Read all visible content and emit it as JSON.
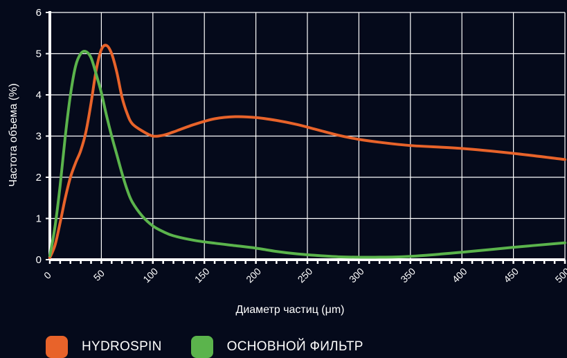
{
  "chart_data": {
    "type": "line",
    "title": "",
    "xlabel": "Диаметр частиц (μm)",
    "ylabel": "Частота объема (%)",
    "xlim": [
      0,
      500
    ],
    "ylim": [
      0,
      6
    ],
    "x_ticks": [
      0,
      50,
      100,
      150,
      200,
      250,
      300,
      350,
      400,
      450,
      500
    ],
    "y_ticks": [
      0,
      1,
      2,
      3,
      4,
      5,
      6
    ],
    "grid": true,
    "legend_position": "bottom",
    "series": [
      {
        "name": "HYDROSPIN",
        "color": "#e8632a",
        "x": [
          0,
          5,
          10,
          15,
          20,
          25,
          30,
          35,
          40,
          45,
          50,
          55,
          60,
          65,
          70,
          75,
          80,
          90,
          100,
          110,
          120,
          140,
          160,
          180,
          200,
          220,
          240,
          260,
          280,
          300,
          320,
          350,
          400,
          450,
          500
        ],
        "y": [
          0.05,
          0.35,
          0.9,
          1.5,
          2.0,
          2.35,
          2.65,
          3.1,
          3.8,
          4.6,
          5.1,
          5.2,
          5.0,
          4.55,
          3.95,
          3.55,
          3.3,
          3.12,
          3.0,
          3.02,
          3.1,
          3.28,
          3.42,
          3.47,
          3.45,
          3.38,
          3.28,
          3.15,
          3.02,
          2.92,
          2.85,
          2.77,
          2.7,
          2.58,
          2.43
        ]
      },
      {
        "name": "ОСНОВНОЙ ФИЛЬТР",
        "color": "#5bb44c",
        "x": [
          0,
          5,
          10,
          15,
          20,
          25,
          30,
          35,
          40,
          45,
          50,
          55,
          60,
          65,
          70,
          75,
          80,
          90,
          100,
          110,
          120,
          140,
          160,
          180,
          200,
          220,
          240,
          260,
          280,
          300,
          320,
          350,
          400,
          450,
          500
        ],
        "y": [
          0.1,
          0.8,
          1.8,
          3.0,
          4.0,
          4.7,
          5.0,
          5.05,
          4.9,
          4.5,
          4.05,
          3.5,
          3.0,
          2.55,
          2.1,
          1.7,
          1.4,
          1.05,
          0.82,
          0.68,
          0.58,
          0.47,
          0.4,
          0.34,
          0.28,
          0.2,
          0.14,
          0.1,
          0.07,
          0.06,
          0.06,
          0.08,
          0.18,
          0.3,
          0.41
        ]
      }
    ]
  }
}
